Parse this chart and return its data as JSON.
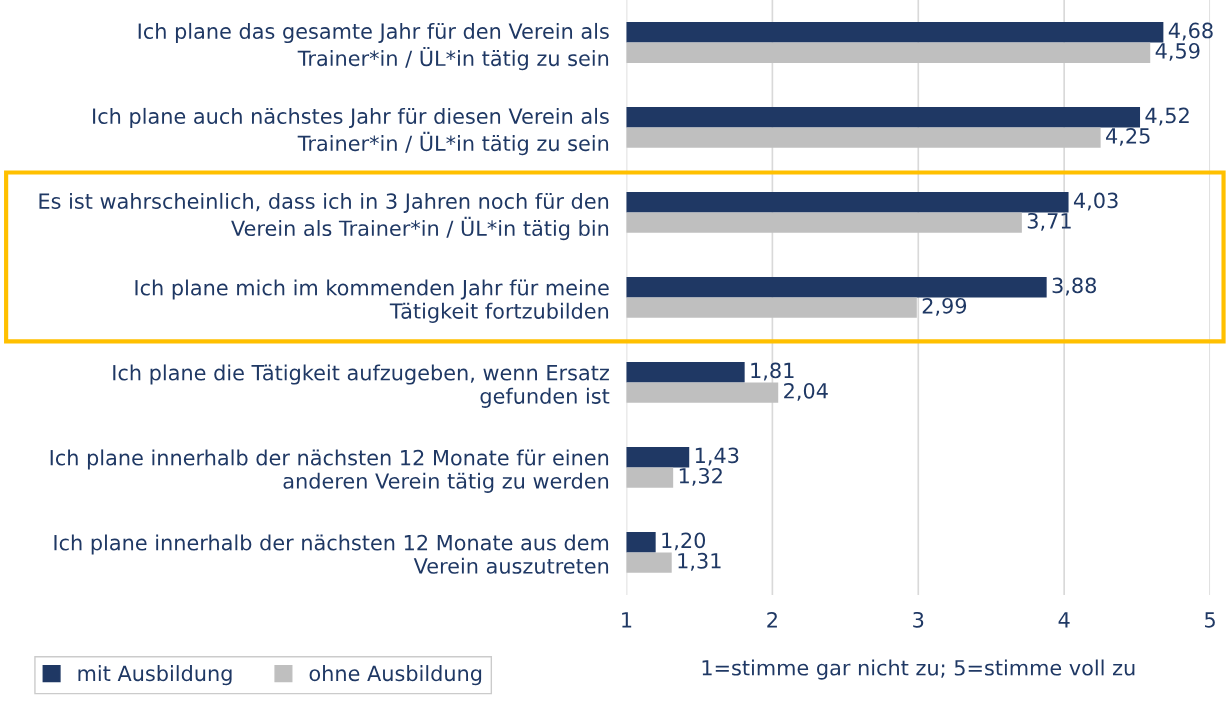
{
  "chart_data": {
    "type": "bar",
    "orientation": "horizontal",
    "categories": [
      "Ich plane das gesamte Jahr für den Verein als\nTrainer*in / ÜL*in tätig zu sein",
      "Ich plane auch nächstes Jahr für diesen Verein als\nTrainer*in / ÜL*in tätig zu sein",
      "Es ist wahrscheinlich, dass ich in 3 Jahren noch für den\nVerein als Trainer*in / ÜL*in tätig bin",
      "Ich plane mich im kommenden Jahr für meine\nTätigkeit fortzubilden",
      "Ich plane die Tätigkeit aufzugeben, wenn Ersatz\ngefunden ist",
      "Ich plane innerhalb der nächsten 12 Monate für einen\nanderen Verein tätig zu werden",
      "Ich plane innerhalb der nächsten 12 Monate aus dem\nVerein auszutreten"
    ],
    "series": [
      {
        "name": "mit Ausbildung",
        "color": "#1f3864",
        "values": [
          4.68,
          4.52,
          4.03,
          3.88,
          1.81,
          1.43,
          1.2
        ],
        "value_labels": [
          "4,68",
          "4,52",
          "4,03",
          "3,88",
          "1,81",
          "1,43",
          "1,20"
        ]
      },
      {
        "name": "ohne Ausbildung",
        "color": "#bfbfbf",
        "values": [
          4.59,
          4.25,
          3.71,
          2.99,
          2.04,
          1.32,
          1.31
        ],
        "value_labels": [
          "4,59",
          "4,25",
          "3,71",
          "2,99",
          "2,04",
          "1,32",
          "1,31"
        ]
      }
    ],
    "xlim": [
      1,
      5
    ],
    "xticks": [
      1,
      2,
      3,
      4,
      5
    ],
    "xlabel": "1=stimme gar nicht zu; 5=stimme voll zu",
    "grid": "x",
    "legend": "bottom left"
  }
}
